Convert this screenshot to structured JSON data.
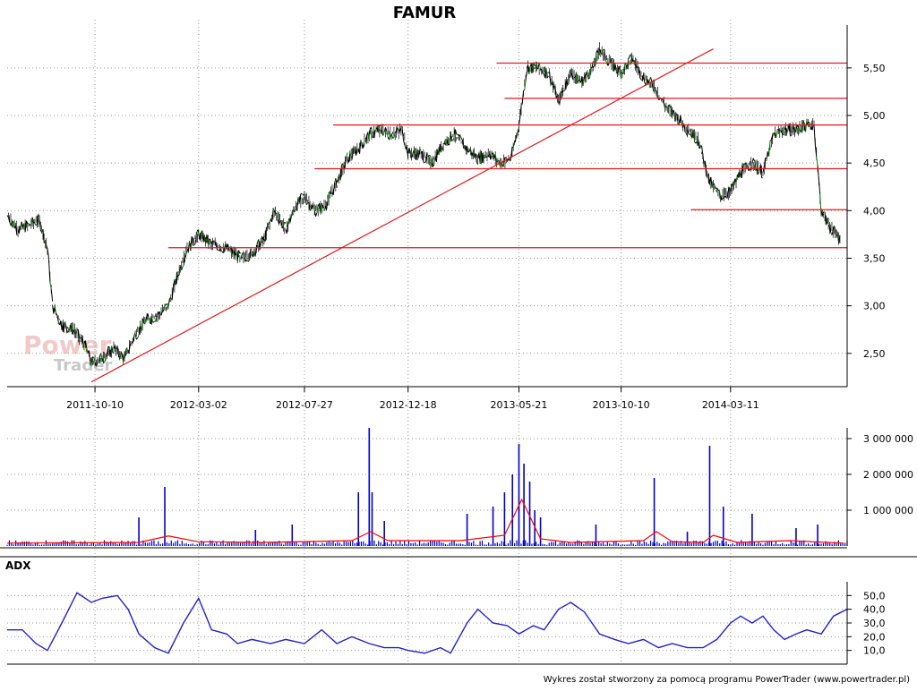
{
  "title": "FAMUR",
  "footer": "Wykres został stworzony za pomocą programu PowerTrader (www.powertrader.pl)",
  "watermark": {
    "line1": "Power",
    "line2": "Trader"
  },
  "colors": {
    "price_up": "#000000",
    "price_flat": "#008000",
    "trendline": "#e41a1c",
    "volume": "#0000cc",
    "volume_ma": "#ff0000",
    "adx": "#2222cc",
    "grid": "#999999",
    "watermark1": "#f2c9c9",
    "watermark2": "#c8c8c8"
  },
  "chart_data": [
    {
      "type": "line",
      "panel": "price",
      "title": "FAMUR",
      "x_ticks": [
        "2011-10-10",
        "2012-03-02",
        "2012-07-27",
        "2012-12-18",
        "2013-05-21",
        "2013-10-10",
        "2014-03-11"
      ],
      "y_ticks": [
        "2,50",
        "3,00",
        "3,50",
        "4,00",
        "4,50",
        "5,00",
        "5,50"
      ],
      "ylim": [
        2.15,
        5.95
      ],
      "x_range": [
        "2011-06-10",
        "2014-08-20"
      ],
      "grid": true,
      "series": [
        {
          "key": "close",
          "points": [
            [
              "2011-06-10",
              3.95
            ],
            [
              "2011-06-25",
              3.8
            ],
            [
              "2011-07-10",
              3.85
            ],
            [
              "2011-07-25",
              3.9
            ],
            [
              "2011-08-05",
              3.6
            ],
            [
              "2011-08-12",
              3.0
            ],
            [
              "2011-08-25",
              2.8
            ],
            [
              "2011-09-10",
              2.75
            ],
            [
              "2011-09-25",
              2.6
            ],
            [
              "2011-10-05",
              2.4
            ],
            [
              "2011-10-20",
              2.45
            ],
            [
              "2011-11-05",
              2.55
            ],
            [
              "2011-11-20",
              2.45
            ],
            [
              "2011-12-05",
              2.7
            ],
            [
              "2011-12-20",
              2.85
            ],
            [
              "2012-01-05",
              2.9
            ],
            [
              "2012-01-20",
              3.0
            ],
            [
              "2012-02-01",
              3.3
            ],
            [
              "2012-02-15",
              3.6
            ],
            [
              "2012-03-02",
              3.75
            ],
            [
              "2012-03-20",
              3.65
            ],
            [
              "2012-04-10",
              3.6
            ],
            [
              "2012-04-30",
              3.5
            ],
            [
              "2012-05-15",
              3.55
            ],
            [
              "2012-06-01",
              3.7
            ],
            [
              "2012-06-15",
              4.0
            ],
            [
              "2012-07-01",
              3.8
            ],
            [
              "2012-07-15",
              4.05
            ],
            [
              "2012-07-27",
              4.15
            ],
            [
              "2012-08-10",
              4.0
            ],
            [
              "2012-08-25",
              4.05
            ],
            [
              "2012-09-10",
              4.3
            ],
            [
              "2012-09-25",
              4.55
            ],
            [
              "2012-10-10",
              4.65
            ],
            [
              "2012-10-25",
              4.8
            ],
            [
              "2012-11-10",
              4.85
            ],
            [
              "2012-11-25",
              4.8
            ],
            [
              "2012-12-10",
              4.85
            ],
            [
              "2012-12-18",
              4.6
            ],
            [
              "2013-01-05",
              4.6
            ],
            [
              "2013-01-20",
              4.5
            ],
            [
              "2013-02-05",
              4.7
            ],
            [
              "2013-02-20",
              4.8
            ],
            [
              "2013-03-10",
              4.65
            ],
            [
              "2013-03-25",
              4.55
            ],
            [
              "2013-04-10",
              4.6
            ],
            [
              "2013-04-25",
              4.5
            ],
            [
              "2013-05-10",
              4.55
            ],
            [
              "2013-05-21",
              4.9
            ],
            [
              "2013-06-01",
              5.5
            ],
            [
              "2013-06-15",
              5.5
            ],
            [
              "2013-07-01",
              5.45
            ],
            [
              "2013-07-15",
              5.15
            ],
            [
              "2013-08-01",
              5.45
            ],
            [
              "2013-08-15",
              5.35
            ],
            [
              "2013-09-01",
              5.5
            ],
            [
              "2013-09-10",
              5.7
            ],
            [
              "2013-09-25",
              5.55
            ],
            [
              "2013-10-10",
              5.45
            ],
            [
              "2013-10-25",
              5.6
            ],
            [
              "2013-11-10",
              5.4
            ],
            [
              "2013-11-25",
              5.3
            ],
            [
              "2013-12-10",
              5.1
            ],
            [
              "2013-12-25",
              5.0
            ],
            [
              "2014-01-10",
              4.85
            ],
            [
              "2014-01-25",
              4.75
            ],
            [
              "2014-02-10",
              4.3
            ],
            [
              "2014-02-25",
              4.15
            ],
            [
              "2014-03-11",
              4.2
            ],
            [
              "2014-03-25",
              4.4
            ],
            [
              "2014-04-10",
              4.5
            ],
            [
              "2014-04-25",
              4.4
            ],
            [
              "2014-05-10",
              4.8
            ],
            [
              "2014-05-25",
              4.85
            ],
            [
              "2014-06-10",
              4.85
            ],
            [
              "2014-06-25",
              4.9
            ],
            [
              "2014-07-05",
              4.9
            ],
            [
              "2014-07-15",
              4.0
            ],
            [
              "2014-07-25",
              3.85
            ],
            [
              "2014-08-10",
              3.7
            ]
          ]
        }
      ],
      "horizontal_lines": [
        {
          "y": 5.55,
          "x1": "2013-04-20",
          "x2": "2014-08-20"
        },
        {
          "y": 5.18,
          "x1": "2013-05-01",
          "x2": "2014-08-20"
        },
        {
          "y": 4.9,
          "x1": "2012-09-05",
          "x2": "2014-08-20"
        },
        {
          "y": 4.44,
          "x1": "2012-08-10",
          "x2": "2014-08-20"
        },
        {
          "y": 4.01,
          "x1": "2014-01-15",
          "x2": "2014-08-20"
        },
        {
          "y": 3.61,
          "x1": "2012-01-20",
          "x2": "2014-08-20"
        }
      ],
      "trendline": {
        "x1": "2011-10-05",
        "y1": 2.2,
        "x2": "2014-02-15",
        "y2": 5.7
      }
    },
    {
      "type": "bar",
      "panel": "volume",
      "y_ticks": [
        "1 000 000",
        "2 000 000",
        "3 000 000"
      ],
      "ylim": [
        0,
        3300000
      ],
      "x_range": [
        "2011-06-10",
        "2014-08-20"
      ],
      "spikes": [
        [
          "2012-01-15",
          1650000
        ],
        [
          "2011-12-10",
          800000
        ],
        [
          "2012-05-20",
          450000
        ],
        [
          "2012-10-10",
          1500000
        ],
        [
          "2012-10-25",
          3300000
        ],
        [
          "2012-10-29",
          1500000
        ],
        [
          "2012-07-10",
          600000
        ],
        [
          "2012-11-15",
          700000
        ],
        [
          "2013-05-01",
          1500000
        ],
        [
          "2013-05-12",
          2000000
        ],
        [
          "2013-05-21",
          2850000
        ],
        [
          "2013-05-28",
          2300000
        ],
        [
          "2013-06-05",
          1800000
        ],
        [
          "2013-06-12",
          1000000
        ],
        [
          "2013-04-15",
          1100000
        ],
        [
          "2013-03-10",
          900000
        ],
        [
          "2013-06-20",
          800000
        ],
        [
          "2013-11-25",
          1900000
        ],
        [
          "2013-09-05",
          600000
        ],
        [
          "2014-01-10",
          400000
        ],
        [
          "2014-02-10",
          2800000
        ],
        [
          "2014-03-01",
          1100000
        ],
        [
          "2014-04-10",
          900000
        ],
        [
          "2014-06-10",
          500000
        ],
        [
          "2014-07-10",
          600000
        ]
      ],
      "baseline_volume": 150000,
      "moving_average": [
        [
          "2011-06-10",
          80000
        ],
        [
          "2011-12-10",
          100000
        ],
        [
          "2012-01-20",
          280000
        ],
        [
          "2012-03-01",
          120000
        ],
        [
          "2012-06-01",
          100000
        ],
        [
          "2012-10-01",
          150000
        ],
        [
          "2012-10-27",
          400000
        ],
        [
          "2012-11-20",
          150000
        ],
        [
          "2013-03-01",
          150000
        ],
        [
          "2013-05-01",
          300000
        ],
        [
          "2013-05-25",
          1300000
        ],
        [
          "2013-06-20",
          200000
        ],
        [
          "2013-08-01",
          100000
        ],
        [
          "2013-11-10",
          150000
        ],
        [
          "2013-11-28",
          400000
        ],
        [
          "2013-12-20",
          120000
        ],
        [
          "2014-02-01",
          100000
        ],
        [
          "2014-02-15",
          300000
        ],
        [
          "2014-03-20",
          100000
        ],
        [
          "2014-06-01",
          150000
        ],
        [
          "2014-08-15",
          80000
        ]
      ]
    },
    {
      "type": "line",
      "panel": "adx",
      "title": "ADX",
      "y_ticks": [
        "10,0",
        "20,0",
        "30,0",
        "40,0",
        "50,0"
      ],
      "ylim": [
        0,
        60
      ],
      "x_range": [
        "2011-06-10",
        "2014-08-20"
      ],
      "points": [
        [
          "2011-06-10",
          25
        ],
        [
          "2011-07-01",
          25
        ],
        [
          "2011-07-20",
          15
        ],
        [
          "2011-08-05",
          10
        ],
        [
          "2011-08-25",
          30
        ],
        [
          "2011-09-15",
          52
        ],
        [
          "2011-10-05",
          45
        ],
        [
          "2011-10-20",
          48
        ],
        [
          "2011-11-10",
          50
        ],
        [
          "2011-11-25",
          40
        ],
        [
          "2011-12-10",
          22
        ],
        [
          "2012-01-01",
          12
        ],
        [
          "2012-01-20",
          8
        ],
        [
          "2012-02-10",
          30
        ],
        [
          "2012-03-02",
          48
        ],
        [
          "2012-03-20",
          25
        ],
        [
          "2012-04-10",
          22
        ],
        [
          "2012-04-25",
          15
        ],
        [
          "2012-05-15",
          18
        ],
        [
          "2012-06-10",
          15
        ],
        [
          "2012-07-01",
          18
        ],
        [
          "2012-07-27",
          15
        ],
        [
          "2012-08-20",
          25
        ],
        [
          "2012-09-10",
          15
        ],
        [
          "2012-10-01",
          20
        ],
        [
          "2012-10-25",
          15
        ],
        [
          "2012-11-15",
          12
        ],
        [
          "2012-12-05",
          12
        ],
        [
          "2012-12-18",
          10
        ],
        [
          "2013-01-10",
          8
        ],
        [
          "2013-02-01",
          12
        ],
        [
          "2013-02-15",
          8
        ],
        [
          "2013-03-10",
          30
        ],
        [
          "2013-03-25",
          40
        ],
        [
          "2013-04-15",
          30
        ],
        [
          "2013-05-05",
          28
        ],
        [
          "2013-05-21",
          22
        ],
        [
          "2013-06-10",
          28
        ],
        [
          "2013-06-25",
          25
        ],
        [
          "2013-07-15",
          40
        ],
        [
          "2013-08-01",
          45
        ],
        [
          "2013-08-20",
          38
        ],
        [
          "2013-09-10",
          22
        ],
        [
          "2013-10-01",
          18
        ],
        [
          "2013-10-20",
          15
        ],
        [
          "2013-11-10",
          18
        ],
        [
          "2013-12-01",
          12
        ],
        [
          "2013-12-20",
          15
        ],
        [
          "2014-01-10",
          12
        ],
        [
          "2014-02-01",
          12
        ],
        [
          "2014-02-20",
          18
        ],
        [
          "2014-03-11",
          30
        ],
        [
          "2014-03-25",
          35
        ],
        [
          "2014-04-10",
          30
        ],
        [
          "2014-04-25",
          35
        ],
        [
          "2014-05-10",
          25
        ],
        [
          "2014-05-25",
          18
        ],
        [
          "2014-06-10",
          22
        ],
        [
          "2014-06-25",
          25
        ],
        [
          "2014-07-15",
          22
        ],
        [
          "2014-08-01",
          35
        ],
        [
          "2014-08-20",
          40
        ]
      ]
    }
  ]
}
